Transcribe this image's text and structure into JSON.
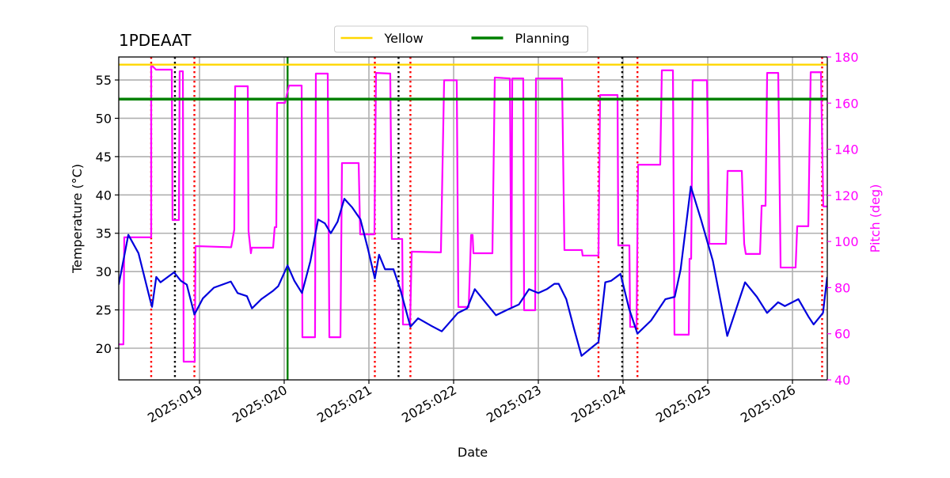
{
  "chart_data": {
    "type": "line",
    "title": "1PDEAAT",
    "xlabel": "Date",
    "ylabel": "Temperature (°C)",
    "y2label": "Pitch (deg)",
    "xlim": [
      18.047,
      26.411
    ],
    "xticks": [
      {
        "value": 19,
        "label": "2025:019"
      },
      {
        "value": 20,
        "label": "2025:020"
      },
      {
        "value": 21,
        "label": "2025:021"
      },
      {
        "value": 22,
        "label": "2025:022"
      },
      {
        "value": 23,
        "label": "2025:023"
      },
      {
        "value": 24,
        "label": "2025:024"
      },
      {
        "value": 25,
        "label": "2025:025"
      },
      {
        "value": 26,
        "label": "2025:026"
      }
    ],
    "ylim": [
      15.87,
      58.0
    ],
    "yticks": [
      20,
      25,
      30,
      35,
      40,
      45,
      50,
      55
    ],
    "y2lim": [
      40,
      180
    ],
    "y2ticks": [
      40,
      60,
      80,
      100,
      120,
      140,
      160,
      180
    ],
    "grid": true,
    "legend": "upper center",
    "hlines": [
      {
        "name": "Yellow",
        "color": "#ffd700",
        "value": 57
      },
      {
        "name": "Planning",
        "color": "#008000",
        "value": 52.5
      }
    ],
    "vlines": [
      {
        "color": "#ff0000",
        "style": "dotted",
        "values": [
          18.43,
          18.94,
          21.07,
          21.49,
          23.71,
          24.17,
          26.35
        ]
      },
      {
        "color": "#000000",
        "style": "dotted",
        "values": [
          18.71,
          21.35,
          23.99
        ]
      },
      {
        "color": "#008000",
        "style": "solid",
        "values": [
          20.04
        ]
      }
    ],
    "series": [
      {
        "color": "#ff00ff",
        "axis": "y2",
        "x": [
          18.047,
          18.102,
          18.112,
          18.43,
          18.43,
          18.486,
          18.673,
          18.682,
          18.757,
          18.766,
          18.804,
          18.813,
          18.944,
          18.953,
          19.374,
          19.411,
          19.421,
          19.57,
          19.579,
          19.607,
          19.617,
          19.869,
          19.888,
          19.907,
          19.916,
          20.009,
          20.056,
          20.206,
          20.215,
          20.364,
          20.374,
          20.514,
          20.533,
          20.664,
          20.682,
          20.879,
          20.897,
          21.065,
          21.084,
          21.252,
          21.271,
          21.393,
          21.402,
          21.486,
          21.505,
          21.85,
          21.888,
          22.037,
          22.056,
          22.178,
          22.206,
          22.224,
          22.234,
          22.458,
          22.486,
          22.664,
          22.682,
          22.692,
          22.822,
          22.832,
          22.963,
          22.972,
          23.28,
          23.308,
          23.514,
          23.523,
          23.71,
          23.729,
          23.935,
          23.944,
          24.075,
          24.084,
          24.159,
          24.178,
          24.439,
          24.458,
          24.589,
          24.607,
          24.776,
          24.785,
          24.804,
          24.822,
          24.991,
          25.019,
          25.215,
          25.234,
          25.402,
          25.43,
          25.449,
          25.617,
          25.636,
          25.682,
          25.701,
          25.832,
          25.86,
          26.037,
          26.056,
          26.187,
          26.215,
          26.336,
          26.364,
          26.411
        ],
        "values": [
          55.4,
          55.4,
          101.8,
          101.8,
          176.6,
          174.5,
          174.5,
          109.3,
          109.3,
          173.8,
          173.8,
          47.9,
          47.9,
          98,
          97.5,
          105.2,
          167.3,
          167.3,
          104.5,
          94.9,
          97.3,
          97.3,
          106.2,
          106.2,
          160.1,
          160.1,
          167.6,
          167.6,
          58.5,
          58.5,
          172.8,
          172.8,
          58.5,
          58.5,
          134,
          134,
          103.1,
          103.1,
          173.1,
          172.8,
          101.1,
          101.1,
          64,
          64,
          95.6,
          95.3,
          169.9,
          169.9,
          71.6,
          71.6,
          102.8,
          102.8,
          94.9,
          94.9,
          171.1,
          170.7,
          71.9,
          170.7,
          170.7,
          70.2,
          70.2,
          170.7,
          170.7,
          96.3,
          96.3,
          93.9,
          93.9,
          163.5,
          163.5,
          98.3,
          98.3,
          63,
          63,
          133.3,
          133.3,
          174.2,
          174.2,
          59.6,
          59.6,
          92.5,
          92.5,
          169.9,
          169.9,
          99,
          99,
          130.6,
          130.6,
          99,
          94.6,
          94.6,
          115.5,
          115.5,
          173.1,
          173.1,
          88.7,
          88.7,
          106.6,
          106.6,
          173.4,
          173.4,
          115.2,
          115.2
        ]
      },
      {
        "color": "#0000dd",
        "x": [
          18.047,
          18.16,
          18.28,
          18.42,
          18.44,
          18.49,
          18.54,
          18.7,
          18.78,
          18.85,
          18.94,
          19.04,
          19.17,
          19.37,
          19.45,
          19.56,
          19.62,
          19.73,
          19.87,
          19.93,
          20.04,
          20.12,
          20.21,
          20.31,
          20.4,
          20.48,
          20.55,
          20.63,
          20.71,
          20.8,
          20.9,
          20.99,
          21.07,
          21.12,
          21.19,
          21.29,
          21.37,
          21.49,
          21.58,
          21.74,
          21.86,
          22.05,
          22.16,
          22.25,
          22.36,
          22.5,
          22.63,
          22.77,
          22.89,
          23.0,
          23.1,
          23.19,
          23.24,
          23.33,
          23.42,
          23.51,
          23.62,
          23.71,
          23.79,
          23.86,
          23.97,
          24.07,
          24.17,
          24.33,
          24.5,
          24.61,
          24.68,
          24.8,
          24.92,
          25.06,
          25.23,
          25.44,
          25.58,
          25.7,
          25.83,
          25.91,
          26.07,
          26.19,
          26.25,
          26.36,
          26.41
        ],
        "values": [
          28.3,
          34.8,
          32.4,
          26.2,
          25.4,
          29.3,
          28.6,
          29.9,
          28.8,
          28.3,
          24.4,
          26.5,
          27.9,
          28.7,
          27.2,
          26.8,
          25.2,
          26.4,
          27.5,
          28.1,
          30.8,
          28.8,
          27.2,
          31.4,
          36.8,
          36.3,
          35.0,
          36.5,
          39.5,
          38.4,
          36.8,
          32.9,
          29.1,
          32.2,
          30.3,
          30.3,
          27.7,
          22.8,
          23.9,
          22.9,
          22.2,
          24.6,
          25.2,
          27.7,
          26.2,
          24.3,
          25.0,
          25.7,
          27.7,
          27.2,
          27.7,
          28.4,
          28.4,
          26.4,
          22.6,
          19.0,
          20.0,
          20.8,
          28.6,
          28.8,
          29.7,
          25.2,
          21.9,
          23.6,
          26.4,
          26.7,
          30.3,
          41.1,
          36.8,
          31.4,
          21.6,
          28.6,
          26.7,
          24.6,
          26.0,
          25.5,
          26.4,
          24.1,
          23.1,
          24.6,
          29.3
        ]
      }
    ]
  }
}
